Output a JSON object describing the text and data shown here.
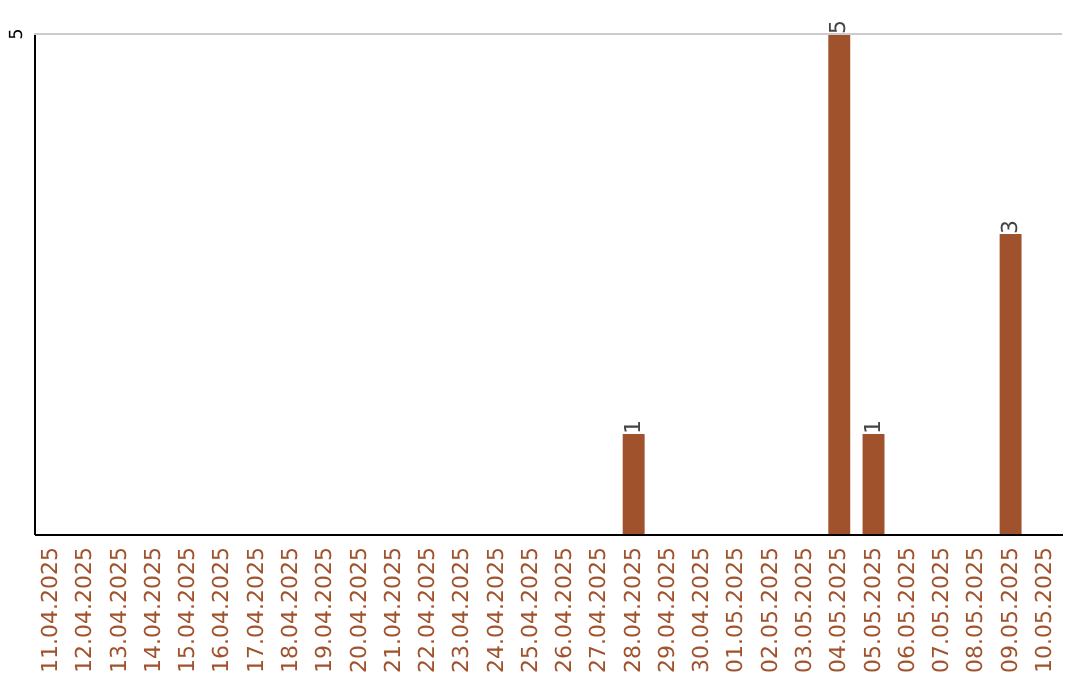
{
  "chart_data": {
    "type": "bar",
    "categories": [
      "11.04.2025",
      "12.04.2025",
      "13.04.2025",
      "14.04.2025",
      "15.04.2025",
      "16.04.2025",
      "17.04.2025",
      "18.04.2025",
      "19.04.2025",
      "20.04.2025",
      "21.04.2025",
      "22.04.2025",
      "23.04.2025",
      "24.04.2025",
      "25.04.2025",
      "26.04.2025",
      "27.04.2025",
      "28.04.2025",
      "29.04.2025",
      "30.04.2025",
      "01.05.2025",
      "02.05.2025",
      "03.05.2025",
      "04.05.2025",
      "05.05.2025",
      "06.05.2025",
      "07.05.2025",
      "08.05.2025",
      "09.05.2025",
      "10.05.2025"
    ],
    "series": [
      {
        "color": "#a0522d",
        "values": [
          null,
          null,
          null,
          null,
          null,
          null,
          null,
          null,
          null,
          null,
          null,
          null,
          null,
          null,
          null,
          null,
          null,
          1,
          null,
          null,
          null,
          null,
          null,
          5,
          1,
          null,
          null,
          null,
          3,
          null
        ],
        "value_labels": [
          null,
          null,
          null,
          null,
          null,
          null,
          null,
          null,
          null,
          null,
          null,
          null,
          null,
          null,
          null,
          null,
          null,
          "1",
          null,
          null,
          null,
          null,
          null,
          "5",
          "1",
          null,
          null,
          null,
          "3",
          null
        ]
      }
    ],
    "annotations": [
      "5"
    ],
    "ref_lines": [
      {
        "axis": "y",
        "value": 5,
        "color": "#cccccc"
      }
    ]
  }
}
